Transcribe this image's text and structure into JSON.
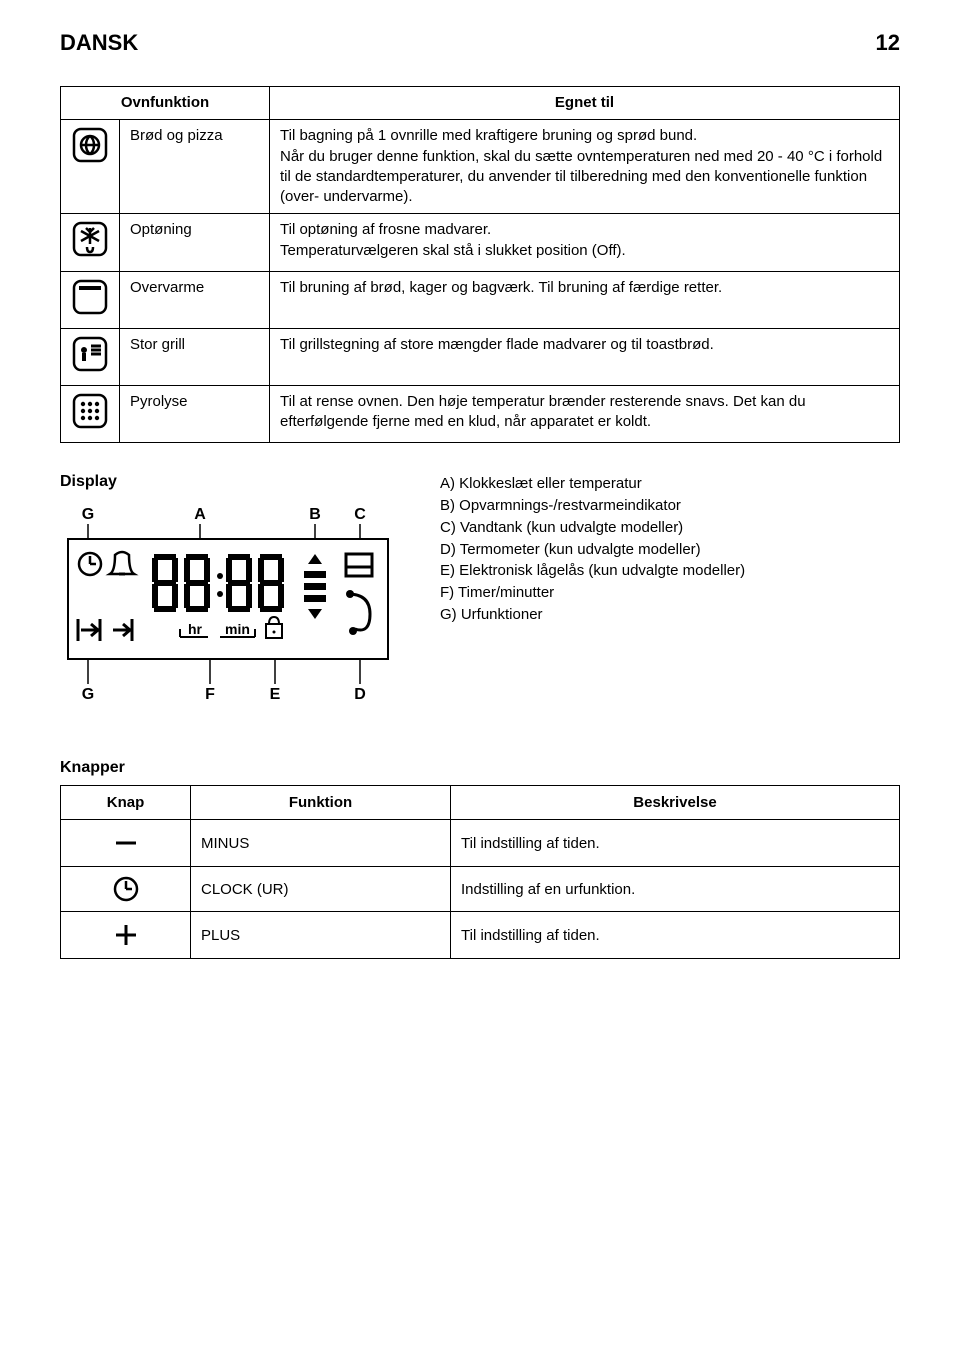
{
  "header": {
    "language": "DANSK",
    "page_number": "12"
  },
  "func_table": {
    "headers": [
      "Ovnfunktion",
      "Egnet til"
    ],
    "rows": [
      {
        "icon": "pizza",
        "name": "Brød og pizza",
        "desc": "Til bagning på 1 ovnrille med kraftigere bruning og sprød bund.\nNår du bruger denne funktion, skal du sætte ovntemperaturen ned med 20 - 40 °C i forhold til de standardtemperaturer, du anvender til tilberedning med den konventionelle funktion (over- undervarme)."
      },
      {
        "icon": "defrost",
        "name": "Optøning",
        "desc": "Til optøning af frosne madvarer.\nTemperaturvælgeren skal stå i slukket position (Off)."
      },
      {
        "icon": "top-heat",
        "name": "Overvarme",
        "desc": "Til bruning af brød, kager og bagværk. Til bruning af færdige retter."
      },
      {
        "icon": "large-grill",
        "name": "Stor grill",
        "desc": "Til grillstegning af store mængder flade madvarer og til toastbrød."
      },
      {
        "icon": "pyrolysis",
        "name": "Pyrolyse",
        "desc": "Til at rense ovnen. Den høje temperatur brænder resterende snavs. Det kan du efterfølgende fjerne med en klud, når apparatet er koldt."
      }
    ]
  },
  "display": {
    "title": "Display",
    "legend": [
      {
        "letter": "A)",
        "text": "Klokkeslæt eller temperatur"
      },
      {
        "letter": "B)",
        "text": "Opvarmnings-/restvarmeindikator"
      },
      {
        "letter": "C)",
        "text": "Vandtank (kun udvalgte modeller)"
      },
      {
        "letter": "D)",
        "text": "Termometer (kun udvalgte modeller)"
      },
      {
        "letter": "E)",
        "text": "Elektronisk lågelås (kun udvalgte modeller)"
      },
      {
        "letter": "F)",
        "text": "Timer/minutter"
      },
      {
        "letter": "G)",
        "text": "Urfunktioner"
      }
    ],
    "labels": {
      "hr": "hr",
      "min": "min"
    },
    "callouts": [
      "G",
      "A",
      "B",
      "C",
      "G",
      "F",
      "E",
      "D"
    ]
  },
  "knapper": {
    "title": "Knapper",
    "headers": [
      "Knap",
      "Funktion",
      "Beskrivelse"
    ],
    "rows": [
      {
        "icon": "minus",
        "func": "MINUS",
        "desc": "Til indstilling af tiden."
      },
      {
        "icon": "clock",
        "func": "CLOCK (UR)",
        "desc": "Indstilling af en urfunktion."
      },
      {
        "icon": "plus",
        "func": "PLUS",
        "desc": "Til indstilling af tiden."
      }
    ]
  },
  "colors": {
    "text": "#000000",
    "bg": "#ffffff",
    "border": "#000000"
  }
}
